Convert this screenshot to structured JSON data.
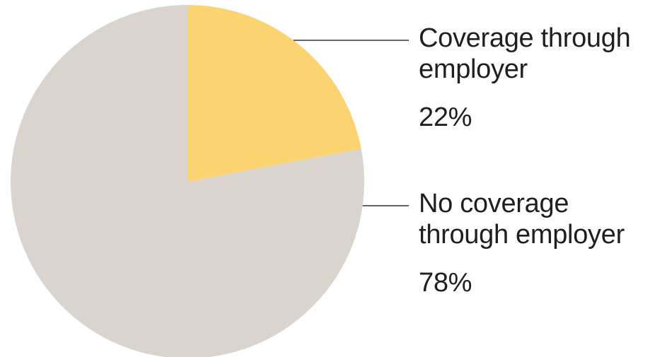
{
  "chart_data": {
    "type": "pie",
    "title": "",
    "slices": [
      {
        "label_lines": [
          "Coverage through",
          "employer"
        ],
        "value": 22,
        "display_value": "22%",
        "color": "#fcd371"
      },
      {
        "label_lines": [
          "No coverage",
          "through employer"
        ],
        "value": 78,
        "display_value": "78%",
        "color": "#dad4ce"
      }
    ],
    "start_angle": "12 o'clock",
    "direction": "clockwise",
    "leader_line_color": "#333333",
    "legend": "none"
  }
}
